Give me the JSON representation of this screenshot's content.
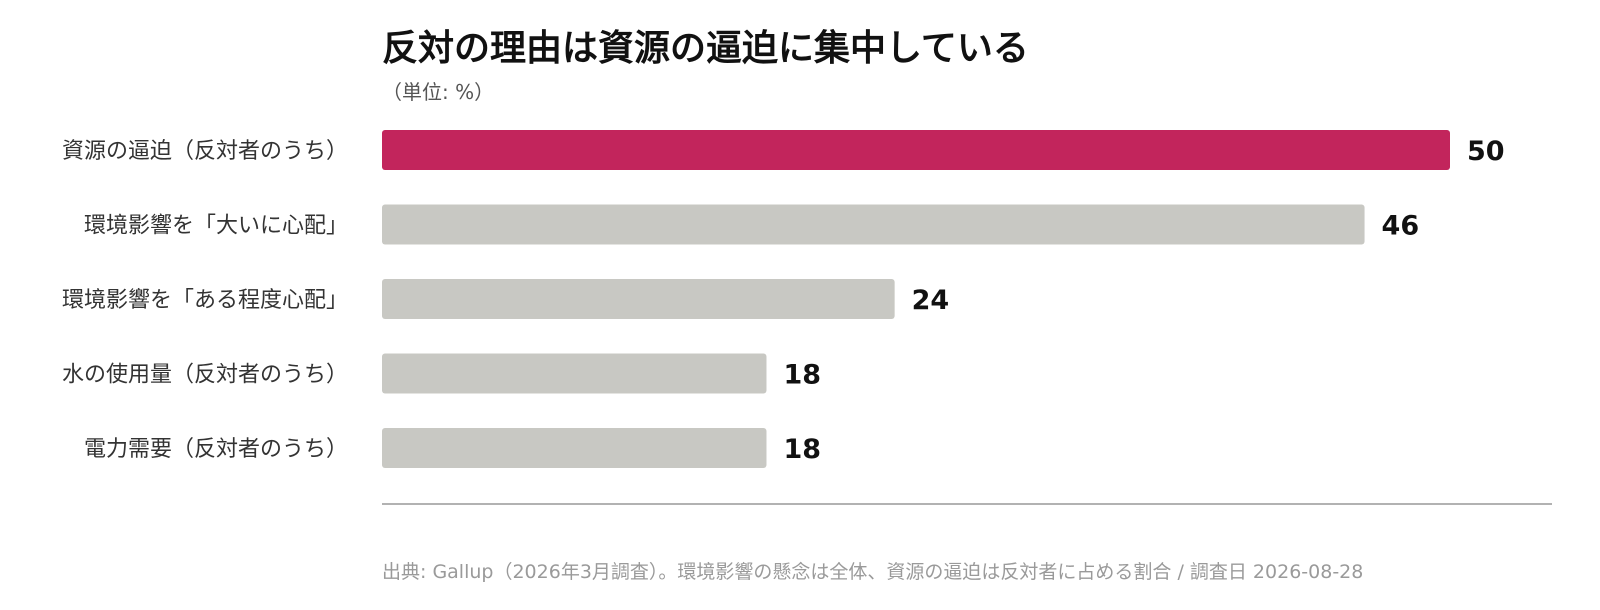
{
  "chart_data": {
    "type": "bar",
    "orientation": "horizontal",
    "title": "反対の理由は資源の逼迫に集中している",
    "subtitle": "（単位: %）",
    "categories": [
      "資源の逼迫（反対者のうち）",
      "環境影響を「大いに心配」",
      "環境影響を「ある程度心配」",
      "水の使用量（反対者のうち）",
      "電力需要（反対者のうち）"
    ],
    "values": [
      50,
      46,
      24,
      18,
      18
    ],
    "value_labels": [
      "50",
      "46",
      "24",
      "18",
      "18"
    ],
    "highlight_index": 0,
    "xlim": [
      0,
      50
    ],
    "grid": false,
    "legend": "none"
  },
  "colors": {
    "highlight": "#c2255c",
    "bar": "#c8c8c3",
    "axis": "#999999"
  },
  "source": "出典: Gallup（2026年3月調査）。環境影響の懸念は全体、資源の逼迫は反対者に占める割合 / 調査日 2026-08-28"
}
